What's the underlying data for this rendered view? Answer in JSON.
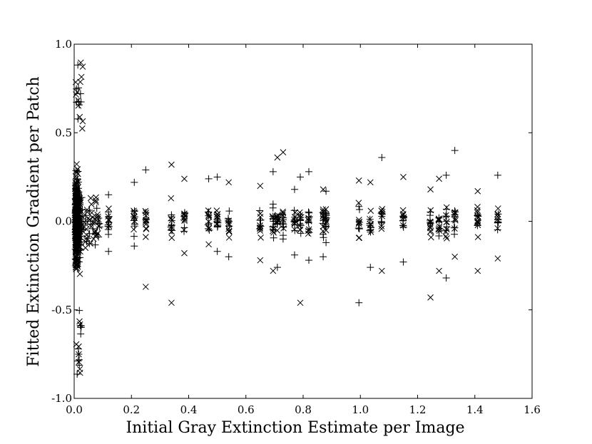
{
  "chart_data": {
    "type": "scatter",
    "title": "",
    "xlabel": "Initial Gray Extinction Estimate per Image",
    "ylabel": "Fitted Extinction Gradient per Patch",
    "xlim": [
      0.0,
      1.6
    ],
    "ylim": [
      -1.0,
      1.0
    ],
    "xticks": [
      0.0,
      0.2,
      0.4,
      0.6,
      0.8,
      1.0,
      1.2,
      1.4,
      1.6
    ],
    "xtick_labels": [
      "0.0",
      "0.2",
      "0.4",
      "0.6",
      "0.8",
      "1.0",
      "1.2",
      "1.4",
      "1.6"
    ],
    "yticks": [
      1.0,
      0.5,
      0.0,
      -0.5,
      -1.0
    ],
    "ytick_labels": [
      "1.0",
      "0.5",
      "0.0",
      "-0.5",
      "-1.0"
    ],
    "grid": false,
    "marker_styles": [
      "x",
      "+"
    ],
    "color": "#000000",
    "dense_cluster": {
      "x_range": [
        0.0,
        0.09
      ],
      "y_range": [
        -0.88,
        0.91
      ],
      "y_core": [
        -0.4,
        0.55
      ]
    },
    "columns": [
      {
        "x": 0.12,
        "y_min": -0.17,
        "y_max": 0.15
      },
      {
        "x": 0.21,
        "y_min": -0.14,
        "y_max": 0.22
      },
      {
        "x": 0.25,
        "y_min": -0.37,
        "y_max": 0.29
      },
      {
        "x": 0.34,
        "y_min": -0.46,
        "y_max": 0.32
      },
      {
        "x": 0.385,
        "y_min": -0.18,
        "y_max": 0.24
      },
      {
        "x": 0.47,
        "y_min": -0.13,
        "y_max": 0.24
      },
      {
        "x": 0.5,
        "y_min": -0.17,
        "y_max": 0.25
      },
      {
        "x": 0.54,
        "y_min": -0.2,
        "y_max": 0.22
      },
      {
        "x": 0.65,
        "y_min": -0.22,
        "y_max": 0.2
      },
      {
        "x": 0.695,
        "y_min": -0.28,
        "y_max": 0.28
      },
      {
        "x": 0.71,
        "y_min": -0.26,
        "y_max": 0.36
      },
      {
        "x": 0.73,
        "y_min": -0.1,
        "y_max": 0.39
      },
      {
        "x": 0.77,
        "y_min": -0.19,
        "y_max": 0.18
      },
      {
        "x": 0.79,
        "y_min": -0.46,
        "y_max": 0.25
      },
      {
        "x": 0.82,
        "y_min": -0.22,
        "y_max": 0.28
      },
      {
        "x": 0.87,
        "y_min": -0.2,
        "y_max": 0.18
      },
      {
        "x": 0.88,
        "y_min": -0.12,
        "y_max": 0.17
      },
      {
        "x": 0.995,
        "y_min": -0.46,
        "y_max": 0.23
      },
      {
        "x": 1.035,
        "y_min": -0.26,
        "y_max": 0.22
      },
      {
        "x": 1.075,
        "y_min": -0.28,
        "y_max": 0.36
      },
      {
        "x": 1.15,
        "y_min": -0.23,
        "y_max": 0.25
      },
      {
        "x": 1.245,
        "y_min": -0.43,
        "y_max": 0.18
      },
      {
        "x": 1.275,
        "y_min": -0.28,
        "y_max": 0.24
      },
      {
        "x": 1.3,
        "y_min": -0.32,
        "y_max": 0.26
      },
      {
        "x": 1.33,
        "y_min": -0.2,
        "y_max": 0.4
      },
      {
        "x": 1.41,
        "y_min": -0.28,
        "y_max": 0.17
      },
      {
        "x": 1.48,
        "y_min": -0.21,
        "y_max": 0.26
      }
    ]
  }
}
